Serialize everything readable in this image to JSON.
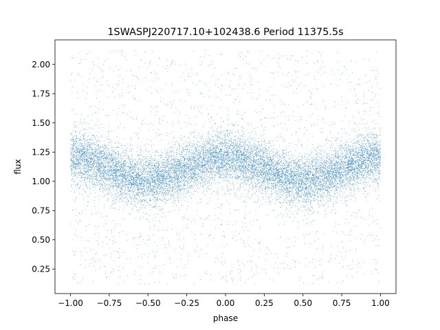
{
  "chart_data": {
    "type": "scatter",
    "title": "1SWASPJ220717.10+102438.6 Period 11375.5s",
    "xlabel": "phase",
    "ylabel": "flux",
    "xlim": [
      -1.1,
      1.1
    ],
    "ylim": [
      0.04,
      2.21
    ],
    "xticks": [
      -1.0,
      -0.75,
      -0.5,
      -0.25,
      0.0,
      0.25,
      0.5,
      0.75,
      1.0
    ],
    "xtick_labels": [
      "−1.00",
      "−0.75",
      "−0.50",
      "−0.25",
      "0.00",
      "0.25",
      "0.50",
      "0.75",
      "1.00"
    ],
    "yticks": [
      0.25,
      0.5,
      0.75,
      1.0,
      1.25,
      1.5,
      1.75,
      2.0
    ],
    "ytick_labels": [
      "0.25",
      "0.50",
      "0.75",
      "1.00",
      "1.25",
      "1.50",
      "1.75",
      "2.00"
    ],
    "grid": false,
    "marker_color": "#1f77b4",
    "series": [
      {
        "points_description_model": {
          "x_range": [
            -1.0,
            1.0
          ],
          "y_range": [
            0.12,
            2.12
          ],
          "mean_curve": {
            "offset": 1.105,
            "amplitude": 0.1,
            "period_in_phase": 1.0,
            "minima_at_phase": [
              -0.5,
              0.5
            ],
            "maxima_at_phase": [
              -1.0,
              0.0,
              1.0
            ]
          },
          "core_spread": 0.11,
          "outlier_fraction": 0.12,
          "point_count": 16000
        }
      }
    ]
  }
}
